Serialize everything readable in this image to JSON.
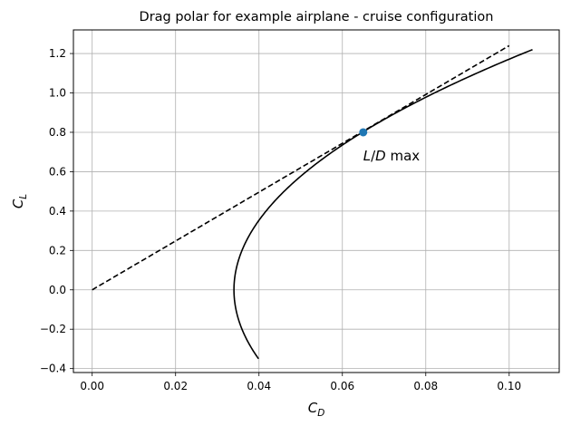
{
  "chart_data": {
    "type": "line",
    "title": "Drag polar for example airplane - cruise configuration",
    "xlabel": {
      "main": "C",
      "sub": "D"
    },
    "ylabel": {
      "main": "C",
      "sub": "L"
    },
    "xlim": [
      -0.0045,
      0.112
    ],
    "ylim": [
      -0.42,
      1.32
    ],
    "xticks": [
      0.0,
      0.02,
      0.04,
      0.06,
      0.08,
      0.1
    ],
    "xtick_labels": [
      "0.00",
      "0.02",
      "0.04",
      "0.06",
      "0.08",
      "0.10"
    ],
    "yticks": [
      -0.4,
      -0.2,
      0.0,
      0.2,
      0.4,
      0.6,
      0.8,
      1.0,
      1.2
    ],
    "ytick_labels": [
      "−0.4",
      "−0.2",
      "0.0",
      "0.2",
      "0.4",
      "0.6",
      "0.8",
      "1.0",
      "1.2"
    ],
    "grid": true,
    "polar_curve": {
      "name": "Drag polar",
      "cd0": 0.034,
      "k": 0.0481,
      "cl_range": [
        -0.35,
        1.22
      ],
      "color": "#000000",
      "style": "solid"
    },
    "tangent_line": {
      "name": "L/D max tangent",
      "x": [
        0.0,
        0.1
      ],
      "y": [
        0.0,
        1.24
      ],
      "color": "#000000",
      "style": "dashed"
    },
    "max_point": {
      "x": 0.065,
      "y": 0.8,
      "color": "#1f77b4"
    },
    "annotation": {
      "label_l": "L",
      "label_slash": "/",
      "label_d": "D",
      "label_rest": " max",
      "x": 0.065,
      "y": 0.68
    }
  }
}
